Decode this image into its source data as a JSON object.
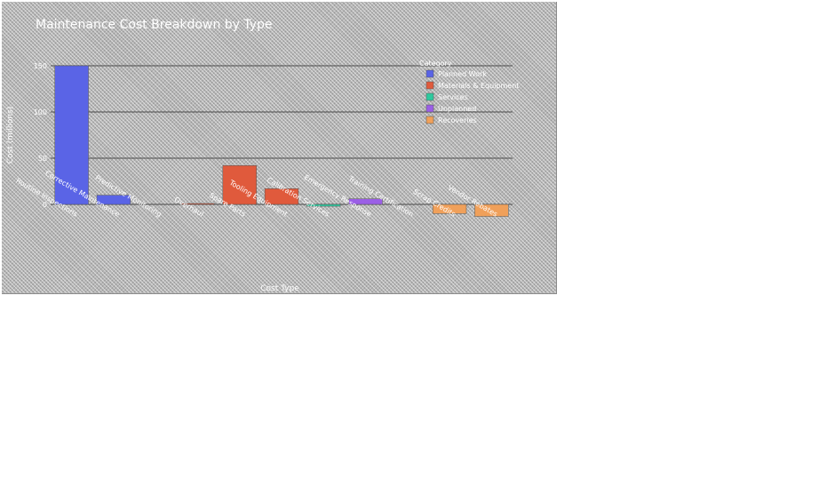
{
  "chart_data": {
    "type": "bar",
    "title": "Maintenance Cost Breakdown by Type",
    "xlabel": "Cost Type",
    "ylabel": "Cost (millions)",
    "ylim": [
      -10,
      150
    ],
    "yticks": [
      0,
      50,
      100,
      150
    ],
    "ytick_labels": [
      "0",
      "50",
      "100",
      "150"
    ],
    "categories": [
      "Routine Inspections",
      "Corrective Maintenance",
      "Predictive Monitoring",
      "Overhaul",
      "Spare Parts",
      "Tooling Equipment",
      "Calibration Services",
      "Emergency Response",
      "Training Certification",
      "Scrap Credits",
      "Vendor Rebates"
    ],
    "legend": {
      "title": "Category",
      "position": "top-right",
      "entries": [
        "Planned Work",
        "Materials & Equipment",
        "Services",
        "Unplanned",
        "Recoveries"
      ]
    },
    "series": [
      {
        "name": "Planned Work",
        "color": "#5a64e6",
        "values": [
          150,
          10,
          null,
          null,
          null,
          null,
          null,
          null,
          null,
          null,
          null
        ]
      },
      {
        "name": "Materials & Equipment",
        "color": "#e05a3c",
        "values": [
          null,
          null,
          null,
          1,
          42,
          17,
          null,
          null,
          null,
          null,
          null
        ]
      },
      {
        "name": "Services",
        "color": "#2ec99e",
        "values": [
          null,
          null,
          null,
          null,
          null,
          null,
          -2,
          null,
          null,
          null,
          null
        ]
      },
      {
        "name": "Unplanned",
        "color": "#9b5fe6",
        "values": [
          null,
          null,
          null,
          null,
          null,
          null,
          null,
          6,
          null,
          null,
          null
        ]
      },
      {
        "name": "Recoveries",
        "color": "#f0a05a",
        "values": [
          null,
          null,
          null,
          null,
          null,
          null,
          null,
          null,
          null,
          -10,
          -13
        ]
      }
    ],
    "grid": true
  }
}
